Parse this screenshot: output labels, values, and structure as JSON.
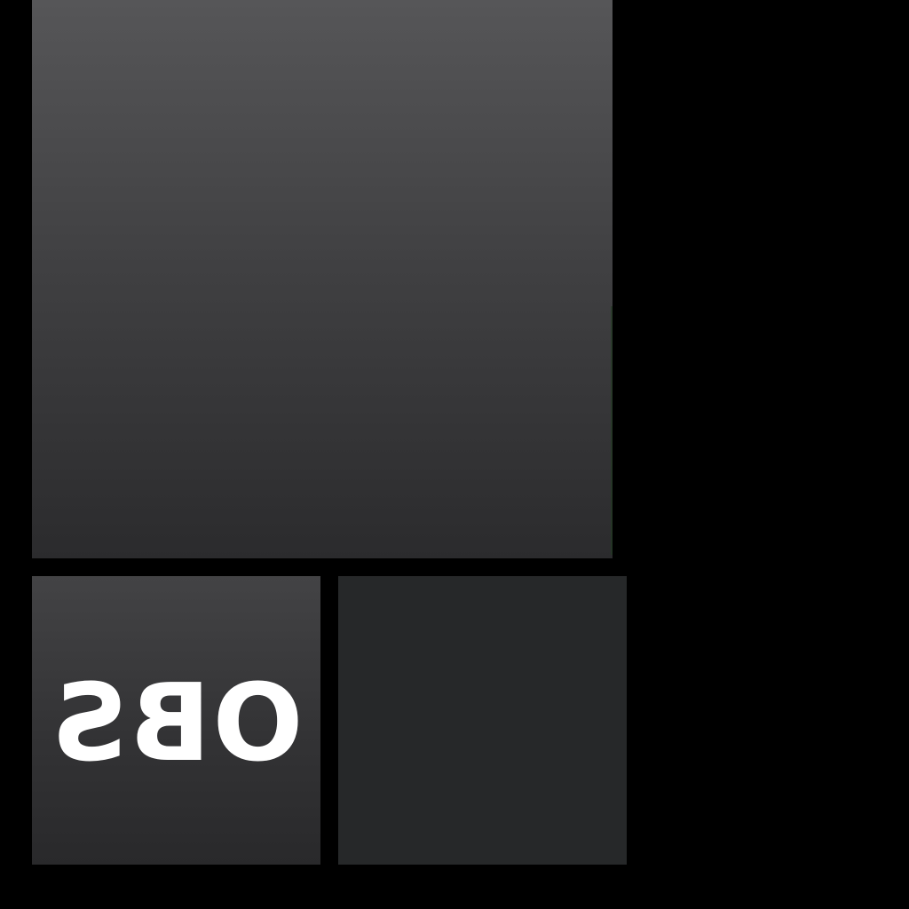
{
  "tiles": {
    "logo_tile": {
      "label": "OBS"
    }
  },
  "colors": {
    "background": "#000000",
    "large_tile_top": "#565658",
    "large_tile_bottom": "#2b2b2d",
    "logo_tile_top": "#434345",
    "logo_tile_bottom": "#29292b",
    "dark_tile": "#262829",
    "logo_text": "#ffffff"
  },
  "icons": {
    "logo": "obs-logo-icon"
  }
}
